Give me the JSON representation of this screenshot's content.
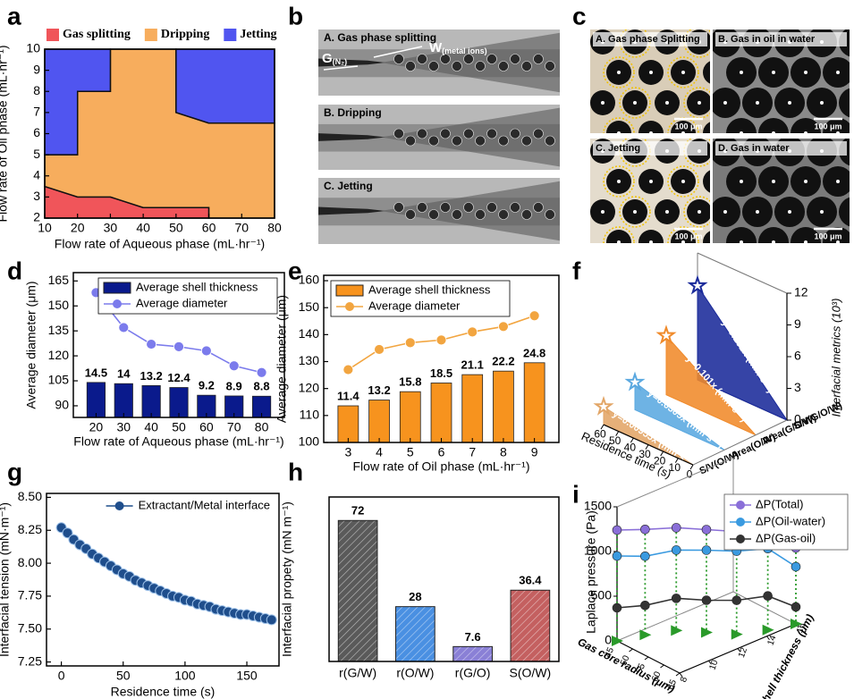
{
  "panel_letters": [
    "a",
    "b",
    "c",
    "d",
    "e",
    "f",
    "g",
    "h",
    "i"
  ],
  "micrographs": {
    "b": {
      "captions": [
        "A. Gas phase splitting",
        "B. Dripping",
        "C. Jetting"
      ],
      "gas_label": {
        "main": "G",
        "sub": "(N₂)"
      },
      "water_label": {
        "main": "W",
        "sub": "(metal ions)"
      }
    },
    "c": {
      "captions": [
        "A. Gas phase Splitting",
        "B. Gas in oil in water",
        "C. Jetting",
        "D. Gas in water"
      ],
      "scale_bar": "100 μm"
    }
  },
  "chart_data": [
    {
      "type": "region",
      "xlabel": "Flow rate of Aqueous phase (mL·hr⁻¹)",
      "ylabel": "Flow rate of Oil phase (mL·hr⁻¹)",
      "xlim": [
        10,
        80
      ],
      "ylim": [
        2,
        10
      ],
      "xticks": [
        10,
        20,
        30,
        40,
        50,
        60,
        70,
        80
      ],
      "yticks": [
        2,
        3,
        4,
        5,
        6,
        7,
        8,
        9,
        10
      ],
      "legend": "top",
      "series": [
        {
          "name": "Gas splitting",
          "color": "#f0555a",
          "polygons": [
            {
              "x": [
                10,
                10,
                20,
                30,
                40,
                60,
                60
              ],
              "y": [
                2,
                3.5,
                3,
                3,
                2.5,
                2.5,
                2
              ]
            }
          ]
        },
        {
          "name": "Dripping",
          "color": "#f7ad5d",
          "polygons": [
            {
              "x": [
                10,
                20,
                30,
                40,
                60,
                60,
                80,
                80,
                60,
                50,
                50,
                30,
                30,
                20,
                20,
                10
              ],
              "y": [
                3.5,
                3,
                3,
                2.5,
                2.5,
                2,
                2,
                6.5,
                6.5,
                7,
                10,
                10,
                8,
                8,
                5,
                5
              ]
            }
          ]
        },
        {
          "name": "Jetting",
          "color": "#5055f0",
          "polygons": [
            {
              "x": [
                10,
                20,
                20,
                30,
                30,
                10
              ],
              "y": [
                5,
                5,
                8,
                8,
                10,
                10
              ]
            },
            {
              "x": [
                50,
                80,
                80,
                60,
                50
              ],
              "y": [
                10,
                10,
                6.5,
                6.5,
                7
              ]
            }
          ]
        }
      ]
    },
    {
      "type": "bar_line",
      "xlabel": "Flow rate of Aqueous phase (mL·hr⁻¹)",
      "ylabel": "Average diameter (μm)",
      "categories": [
        20,
        30,
        40,
        50,
        60,
        70,
        80
      ],
      "ylim": [
        83,
        170
      ],
      "yticks": [
        90,
        105,
        120,
        135,
        150,
        165
      ],
      "y2lim": [
        0,
        60
      ],
      "legend": "upper right",
      "series": [
        {
          "name": "Average shell thickness",
          "kind": "bar",
          "axis": "y2",
          "color": "#0a1a8c",
          "values": [
            14.5,
            14,
            13.2,
            12.4,
            9.2,
            8.9,
            8.8
          ]
        },
        {
          "name": "Average diameter",
          "kind": "line",
          "color": "#7b7bec",
          "values": [
            158,
            137,
            127,
            125.5,
            123,
            114,
            110
          ]
        }
      ]
    },
    {
      "type": "bar_line",
      "xlabel": "Flow rate of Oil phase (mL·hr⁻¹)",
      "ylabel": "Average diameter (μm)",
      "categories": [
        3,
        4,
        5,
        6,
        7,
        8,
        9
      ],
      "ylim": [
        100,
        162
      ],
      "yticks": [
        100,
        110,
        120,
        130,
        140,
        150,
        160
      ],
      "y2lim": [
        0,
        52
      ],
      "legend": "upper left",
      "series": [
        {
          "name": "Average shell thickness",
          "kind": "bar",
          "axis": "y2",
          "color": "#f7931e",
          "values": [
            11.4,
            13.2,
            15.8,
            18.5,
            21.1,
            22.2,
            24.8
          ]
        },
        {
          "name": "Average diameter",
          "kind": "line",
          "color": "#f2a540",
          "values": [
            127,
            134.5,
            137,
            138,
            141,
            143,
            147
          ]
        }
      ]
    },
    {
      "type": "wedge3d",
      "xlabel": "Residence time (s)",
      "ylabel": "Interfacial metrics (10³)",
      "x": [
        0,
        60
      ],
      "xlim": [
        0,
        60
      ],
      "xticks": [
        0,
        10,
        20,
        30,
        40,
        50,
        60
      ],
      "ylim": [
        0,
        12
      ],
      "yticks": [
        0,
        3,
        6,
        9,
        12
      ],
      "categories": [
        "S/V(O/W)",
        "Area(O/W)",
        "Area(G/O/W)",
        "S/V(G/O/W)"
      ],
      "series": [
        {
          "name": "y=0.00955x (mm²s⁻¹)",
          "color": "#e2a566",
          "values": [
            0,
            1.7
          ]
        },
        {
          "name": "y=0.0305x (mm²s⁻¹)",
          "color": "#5aa8e0",
          "values": [
            0,
            2.6
          ]
        },
        {
          "name": "y=0.101x (mm²s⁻¹)",
          "color": "#f08a2a",
          "values": [
            0,
            5.6
          ]
        },
        {
          "name": "y=0.192x (mm²s⁻¹)",
          "color": "#1a2a9a",
          "values": [
            0,
            8.9
          ]
        }
      ]
    },
    {
      "type": "line",
      "xlabel": "Residence time (s)",
      "ylabel": "Interfacial tension (mN·m⁻¹)",
      "xlim": [
        -12,
        176
      ],
      "xticks": [
        0,
        50,
        100,
        150
      ],
      "ylim": [
        7.22,
        8.53
      ],
      "yticks": [
        7.25,
        {
          "value": 7.5,
          "label": "7.50"
        },
        7.75,
        {
          "value": 8,
          "label": "8.00"
        },
        8.25,
        {
          "value": 8.5,
          "label": "8.50"
        }
      ],
      "legend": "upper right",
      "series": [
        {
          "name": "Extractant/Metal interface",
          "color": "#1f4e8c",
          "x": [
            0,
            5,
            10,
            15,
            20,
            25,
            30,
            35,
            40,
            45,
            50,
            55,
            60,
            65,
            70,
            75,
            80,
            85,
            90,
            95,
            100,
            105,
            110,
            115,
            120,
            125,
            130,
            135,
            140,
            145,
            150,
            155,
            160,
            165,
            170
          ],
          "values": [
            8.27,
            8.23,
            8.18,
            8.14,
            8.11,
            8.07,
            8.04,
            8.01,
            7.98,
            7.95,
            7.92,
            7.9,
            7.87,
            7.85,
            7.83,
            7.81,
            7.79,
            7.77,
            7.75,
            7.74,
            7.72,
            7.71,
            7.69,
            7.68,
            7.67,
            7.65,
            7.64,
            7.63,
            7.62,
            7.61,
            7.61,
            7.6,
            7.59,
            7.58,
            7.57
          ]
        }
      ]
    },
    {
      "type": "bar",
      "ylabel": "Interfacial propety (mN m⁻¹)",
      "categories": [
        "r(G/W)",
        "r(O/W)",
        "r(G/O)",
        "S(O/W)"
      ],
      "values": [
        72,
        28,
        7.6,
        36.4
      ],
      "colors": [
        "#5a5a5a",
        "#4a90e2",
        "#8a80d6",
        "#c46060"
      ],
      "ylim": [
        0,
        84
      ]
    },
    {
      "type": "line3d",
      "ylabel": "Laplace pressure (Pa)",
      "xlabel": "Gas core radius (μm)",
      "zlabel": "Shell thickness (μm)",
      "x": [
        45,
        47,
        50,
        55,
        60,
        63,
        65
      ],
      "z": [
        8,
        9.5,
        11,
        12,
        13,
        14.5,
        16
      ],
      "xlim": [
        45,
        65
      ],
      "xticks": [
        45,
        50,
        55,
        60,
        65
      ],
      "zlim": [
        8,
        16
      ],
      "zticks": [
        8,
        10,
        12,
        14,
        16
      ],
      "ylim": [
        0,
        1500
      ],
      "yticks": [
        0,
        500,
        1000,
        1500
      ],
      "legend": "upper right",
      "floor_marker_color": "#2a9a2a",
      "series": [
        {
          "name": "ΔP(Total)",
          "color": "#8a6fd8",
          "values": [
            1240,
            1180,
            1150,
            1150,
            1150,
            1130,
            850
          ]
        },
        {
          "name": "ΔP(Oil-water)",
          "color": "#3a9ae0",
          "values": [
            950,
            880,
            900,
            920,
            930,
            910,
            640
          ]
        },
        {
          "name": "ΔP(Gas-oil)",
          "color": "#333333",
          "values": [
            370,
            330,
            360,
            360,
            380,
            380,
            190
          ]
        }
      ]
    }
  ]
}
